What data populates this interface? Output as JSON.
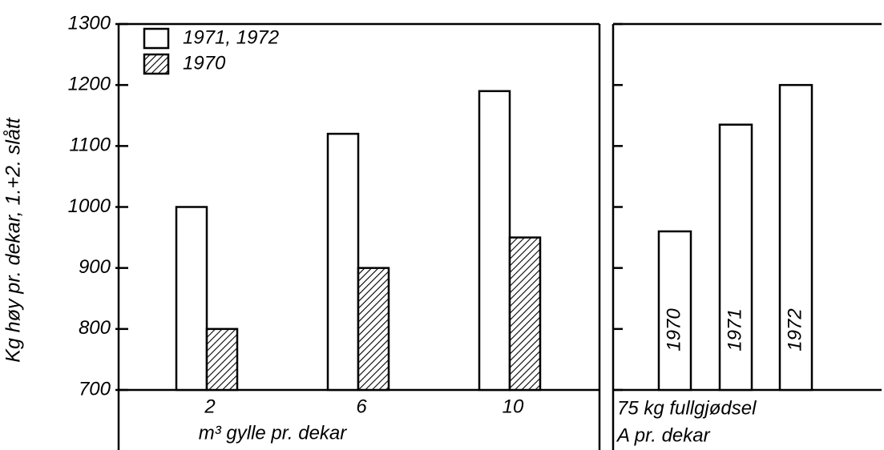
{
  "chart_data": [
    {
      "type": "bar",
      "ylabel": "Kg høy pr. dekar, 1.+2. slått",
      "xlabel": "m³ gylle pr. dekar",
      "categories": [
        "2",
        "6",
        "10"
      ],
      "series": [
        {
          "name": "1971, 1972",
          "color": "#ffffff",
          "hatch": false,
          "values": [
            1000,
            1120,
            1190
          ]
        },
        {
          "name": "1970",
          "color": "#000000",
          "hatch": true,
          "values": [
            800,
            900,
            950
          ]
        }
      ],
      "ylim": [
        700,
        1300
      ],
      "yticks": [
        700,
        800,
        900,
        1000,
        1100,
        1200,
        1300
      ]
    },
    {
      "type": "bar",
      "xlabel": [
        "75 kg fullgjødsel",
        "A pr. dekar"
      ],
      "categories": [
        "1970",
        "1971",
        "1972"
      ],
      "values": [
        960,
        1135,
        1200
      ],
      "color": "#ffffff",
      "ylim": [
        700,
        1300
      ],
      "yticks": [
        700,
        800,
        900,
        1000,
        1100,
        1200,
        1300
      ]
    }
  ]
}
